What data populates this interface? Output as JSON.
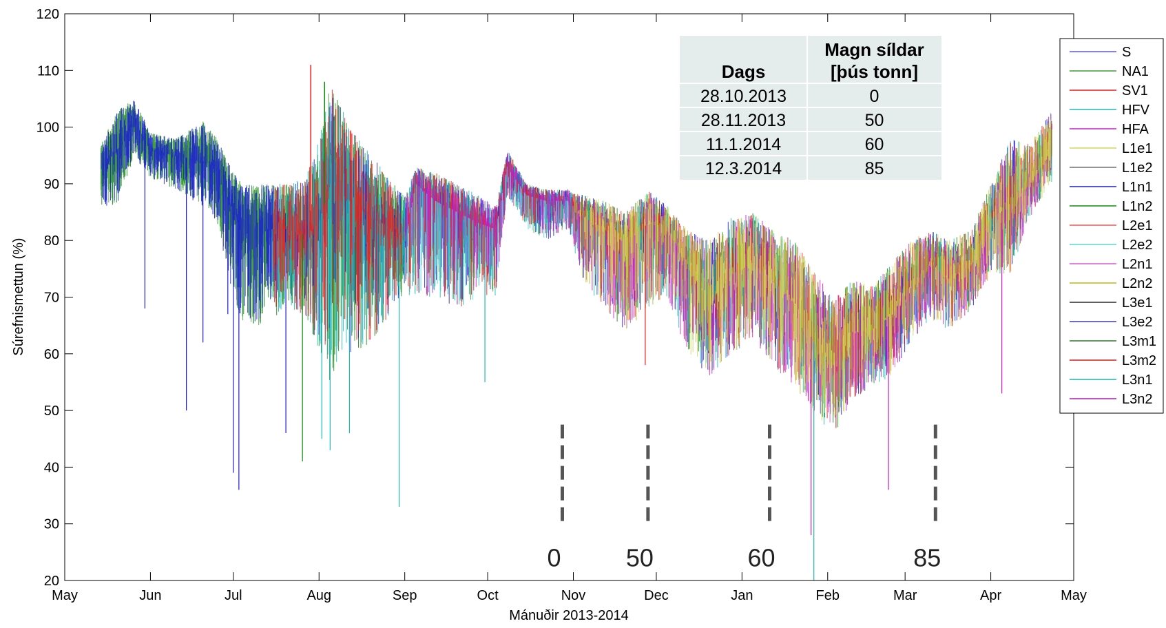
{
  "chart_data": {
    "type": "line",
    "xlabel": "Mánuðir 2013-2014",
    "ylabel": "Súrefnismettun (%)",
    "x_ticks": [
      "May",
      "Jun",
      "Jul",
      "Aug",
      "Sep",
      "Oct",
      "Nov",
      "Dec",
      "Jan",
      "Feb",
      "Mar",
      "Apr",
      "May"
    ],
    "xlim": [
      "2013-05-01",
      "2014-05-01"
    ],
    "ylim": [
      20,
      120
    ],
    "y_ticks": [
      20,
      30,
      40,
      50,
      60,
      70,
      80,
      90,
      100,
      110,
      120
    ],
    "legend_position": "outside-right",
    "series": [
      {
        "name": "S",
        "color": "#5a5ad8"
      },
      {
        "name": "NA1",
        "color": "#3c9a3c"
      },
      {
        "name": "SV1",
        "color": "#ee1c1c"
      },
      {
        "name": "HFV",
        "color": "#1cb8b8"
      },
      {
        "name": "HFA",
        "color": "#c81cc8"
      },
      {
        "name": "L1e1",
        "color": "#d6d65a"
      },
      {
        "name": "L1e2",
        "color": "#707070"
      },
      {
        "name": "L1n1",
        "color": "#1c1cd6"
      },
      {
        "name": "L1n2",
        "color": "#0e8a0e"
      },
      {
        "name": "L2e1",
        "color": "#ee5a5a"
      },
      {
        "name": "L2e2",
        "color": "#5ad6d6"
      },
      {
        "name": "L2n1",
        "color": "#d65ad6"
      },
      {
        "name": "L2n2",
        "color": "#b8b81c"
      },
      {
        "name": "L3e1",
        "color": "#2a2a2a"
      },
      {
        "name": "L3e2",
        "color": "#3a3ab8"
      },
      {
        "name": "L3m1",
        "color": "#2a7a2a"
      },
      {
        "name": "L3m2",
        "color": "#d61c1c"
      },
      {
        "name": "L3n1",
        "color": "#1cb0b0"
      },
      {
        "name": "L3n2",
        "color": "#b01cb0"
      }
    ],
    "envelope": {
      "dates": [
        "2013-05-14",
        "2013-05-20",
        "2013-05-26",
        "2013-06-01",
        "2013-06-10",
        "2013-06-20",
        "2013-06-25",
        "2013-07-01",
        "2013-07-05",
        "2013-07-12",
        "2013-07-20",
        "2013-07-27",
        "2013-08-01",
        "2013-08-05",
        "2013-08-12",
        "2013-08-20",
        "2013-08-28",
        "2013-09-01",
        "2013-09-05",
        "2013-09-12",
        "2013-09-20",
        "2013-09-28",
        "2013-10-04",
        "2013-10-08",
        "2013-10-15",
        "2013-10-22",
        "2013-10-30",
        "2013-11-05",
        "2013-11-12",
        "2013-11-20",
        "2013-11-28",
        "2013-12-05",
        "2013-12-12",
        "2013-12-20",
        "2013-12-28",
        "2014-01-05",
        "2014-01-12",
        "2014-01-20",
        "2014-01-27",
        "2014-02-03",
        "2014-02-10",
        "2014-02-17",
        "2014-02-24",
        "2014-03-03",
        "2014-03-10",
        "2014-03-17",
        "2014-03-25",
        "2014-04-01",
        "2014-04-08",
        "2014-04-15",
        "2014-04-23"
      ],
      "mid": [
        93,
        96,
        101,
        96,
        95,
        94,
        93,
        85,
        82,
        82,
        82,
        81,
        83,
        90,
        87,
        84,
        82,
        80,
        90,
        87,
        85,
        83,
        82,
        93,
        88,
        87,
        87,
        84,
        82,
        80,
        83,
        82,
        76,
        69,
        74,
        76,
        73,
        69,
        62,
        58,
        64,
        64,
        67,
        72,
        76,
        73,
        76,
        84,
        86,
        90,
        96
      ],
      "low": [
        86,
        86,
        95,
        91,
        89,
        86,
        83,
        70,
        65,
        65,
        68,
        66,
        60,
        55,
        60,
        62,
        68,
        70,
        70,
        70,
        68,
        70,
        70,
        88,
        82,
        80,
        82,
        72,
        68,
        64,
        68,
        70,
        60,
        56,
        60,
        62,
        58,
        54,
        50,
        45,
        52,
        54,
        56,
        62,
        66,
        64,
        68,
        74,
        74,
        84,
        90
      ],
      "high": [
        97,
        103,
        105,
        99,
        98,
        101,
        98,
        92,
        90,
        90,
        90,
        91,
        98,
        108,
        100,
        95,
        90,
        88,
        93,
        92,
        90,
        88,
        86,
        96,
        90,
        89,
        89,
        88,
        87,
        85,
        89,
        86,
        82,
        80,
        84,
        85,
        82,
        80,
        75,
        70,
        73,
        72,
        76,
        80,
        82,
        80,
        82,
        90,
        98,
        97,
        103
      ],
      "dips": [
        {
          "date": "2013-05-30",
          "min": 68,
          "color": "#1c1cd6"
        },
        {
          "date": "2013-06-14",
          "min": 50,
          "color": "#1c1cd6"
        },
        {
          "date": "2013-06-20",
          "min": 62,
          "color": "#1c1cd6"
        },
        {
          "date": "2013-06-29",
          "min": 67,
          "color": "#1c1cd6"
        },
        {
          "date": "2013-07-01",
          "min": 39,
          "color": "#1c1cd6"
        },
        {
          "date": "2013-07-03",
          "min": 36,
          "color": "#1c1cd6"
        },
        {
          "date": "2013-07-20",
          "min": 46,
          "color": "#1c1cd6"
        },
        {
          "date": "2013-07-26",
          "min": 41,
          "color": "#0e8a0e"
        },
        {
          "date": "2013-08-02",
          "min": 45,
          "color": "#1cb8b8"
        },
        {
          "date": "2013-08-05",
          "min": 43,
          "color": "#1cb8b8"
        },
        {
          "date": "2013-08-12",
          "min": 46,
          "color": "#1cb8b8"
        },
        {
          "date": "2013-08-30",
          "min": 33,
          "color": "#1cb8b8"
        },
        {
          "date": "2013-09-30",
          "min": 55,
          "color": "#1cb8b8"
        },
        {
          "date": "2013-11-27",
          "min": 58,
          "color": "#ee1c1c"
        },
        {
          "date": "2014-01-27",
          "min": 20,
          "color": "#1cb8b8"
        },
        {
          "date": "2014-01-26",
          "min": 28,
          "color": "#c81cc8"
        },
        {
          "date": "2014-02-23",
          "min": 36,
          "color": "#c81cc8"
        },
        {
          "date": "2014-04-05",
          "min": 53,
          "color": "#c81cc8"
        }
      ],
      "spikes": [
        {
          "date": "2013-07-29",
          "max": 111,
          "color": "#ee1c1c"
        },
        {
          "date": "2013-08-03",
          "max": 108,
          "color": "#0e8a0e"
        }
      ]
    },
    "annotations": [
      {
        "date": "2013-10-28",
        "label": "0"
      },
      {
        "date": "2013-11-28",
        "label": "50"
      },
      {
        "date": "2014-01-11",
        "label": "60"
      },
      {
        "date": "2014-03-12",
        "label": "85"
      }
    ],
    "table": {
      "headers": [
        "Dags",
        "Magn síldar\n[þús tonn]"
      ],
      "rows": [
        [
          "28.10.2013",
          "0"
        ],
        [
          "28.11.2013",
          "50"
        ],
        [
          "11.1.2014",
          "60"
        ],
        [
          "12.3.2014",
          "85"
        ]
      ],
      "background": "#e4ecec"
    }
  }
}
